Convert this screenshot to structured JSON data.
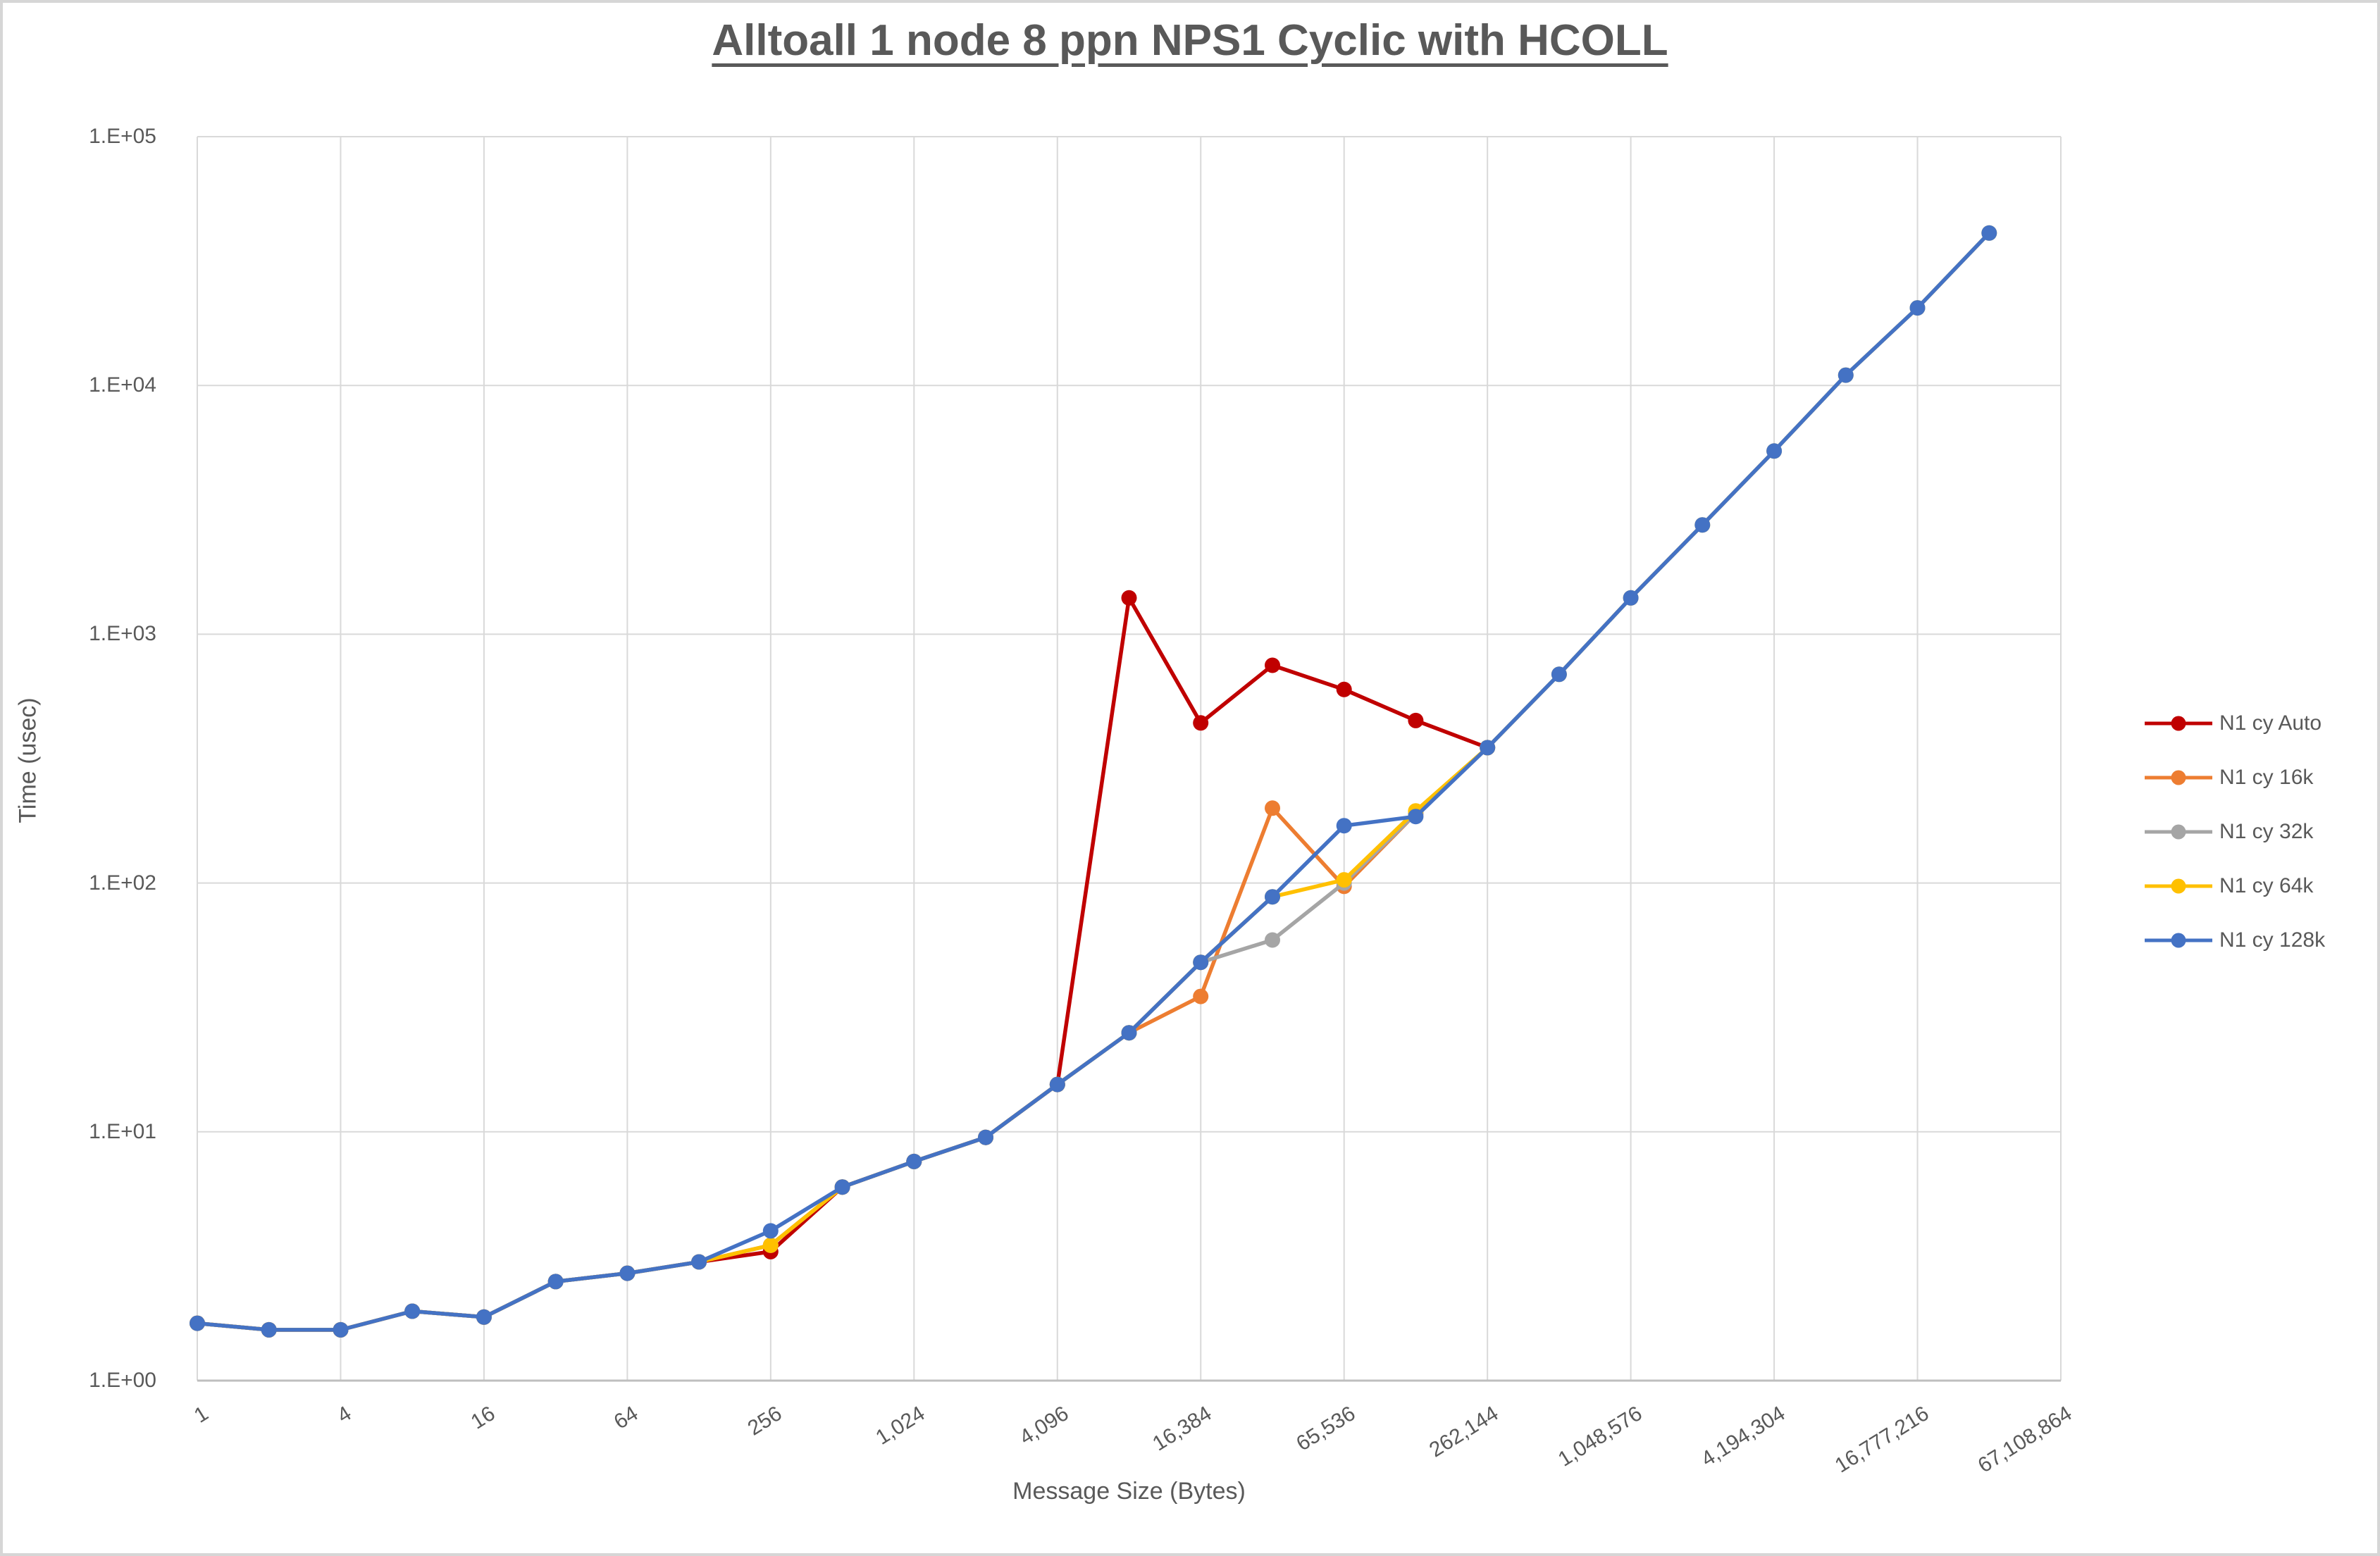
{
  "title": "Alltoall 1 node 8 ppn NPS1 Cyclic with HCOLL",
  "colors": {
    "grid": "#D9D9D9",
    "axis_line": "#BFBFBF",
    "text": "#595959",
    "series_auto": "#C00000",
    "series_16k": "#ED7D31",
    "series_32k": "#A5A5A5",
    "series_64k": "#FFC000",
    "series_128k": "#4472C4"
  },
  "legend": [
    {
      "label": "N1 cy Auto",
      "color": "#C00000"
    },
    {
      "label": "N1 cy 16k",
      "color": "#ED7D31"
    },
    {
      "label": "N1 cy 32k",
      "color": "#A5A5A5"
    },
    {
      "label": "N1 cy 64k",
      "color": "#FFC000"
    },
    {
      "label": "N1 cy 128k",
      "color": "#4472C4"
    }
  ],
  "chart_data": {
    "type": "line",
    "title": "Alltoall 1 node 8 ppn NPS1 Cyclic with HCOLL",
    "xlabel": "Message Size (Bytes)",
    "ylabel": "Time (usec)",
    "x_scale": "log2",
    "y_scale": "log10",
    "xlim": [
      1,
      67108864
    ],
    "ylim": [
      1,
      100000
    ],
    "grid": "on",
    "legend_position": "right",
    "x": [
      1,
      2,
      4,
      8,
      16,
      32,
      64,
      128,
      256,
      512,
      1024,
      2048,
      4096,
      8192,
      16384,
      32768,
      65536,
      131072,
      262144,
      524288,
      1048576,
      2097152,
      4194304,
      8388608,
      16777216,
      33554432
    ],
    "x_tick_values": [
      1,
      4,
      16,
      64,
      256,
      1024,
      4096,
      16384,
      65536,
      262144,
      1048576,
      4194304,
      16777216,
      67108864
    ],
    "x_tick_labels": [
      "1",
      "4",
      "16",
      "64",
      "256",
      "1,024",
      "4,096",
      "16,384",
      "65,536",
      "262,144",
      "1,048,576",
      "4,194,304",
      "16,777,216",
      "67,108,864"
    ],
    "y_tick_values": [
      1,
      10,
      100,
      1000,
      10000,
      100000
    ],
    "y_tick_labels": [
      "1.E+00",
      "1.E+01",
      "1.E+02",
      "1.E+03",
      "1.E+04",
      "1.E+05"
    ],
    "series": [
      {
        "name": "N1 cy Auto",
        "color": "#C00000",
        "values": [
          1.7,
          1.6,
          1.6,
          1.9,
          1.8,
          2.5,
          2.7,
          3.0,
          3.3,
          6.0,
          7.6,
          9.5,
          15.5,
          1400,
          440,
          750,
          600,
          450,
          350
        ]
      },
      {
        "name": "N1 cy 16k",
        "color": "#ED7D31",
        "values": [
          1.7,
          1.6,
          1.6,
          1.9,
          1.8,
          2.5,
          2.7,
          3.0,
          3.5,
          6.0,
          7.6,
          9.5,
          15.5,
          25,
          35,
          200,
          97,
          190,
          350
        ]
      },
      {
        "name": "N1 cy 32k",
        "color": "#A5A5A5",
        "values": [
          1.7,
          1.6,
          1.6,
          1.9,
          1.8,
          2.5,
          2.7,
          3.0,
          3.5,
          6.0,
          7.6,
          9.5,
          15.5,
          25,
          48,
          59,
          100,
          190,
          350
        ]
      },
      {
        "name": "N1 cy 64k",
        "color": "#FFC000",
        "values": [
          1.7,
          1.6,
          1.6,
          1.9,
          1.8,
          2.5,
          2.7,
          3.0,
          3.5,
          6.0,
          7.6,
          9.5,
          15.5,
          25,
          48,
          88,
          103,
          195,
          350,
          690,
          1400,
          2750,
          5450,
          11000,
          20500,
          41000
        ]
      },
      {
        "name": "N1 cy 128k",
        "color": "#4472C4",
        "values": [
          1.7,
          1.6,
          1.6,
          1.9,
          1.8,
          2.5,
          2.7,
          3.0,
          4.0,
          6.0,
          7.6,
          9.5,
          15.5,
          25,
          48,
          88,
          170,
          185,
          350,
          690,
          1400,
          2750,
          5450,
          11000,
          20500,
          41000
        ]
      }
    ]
  }
}
